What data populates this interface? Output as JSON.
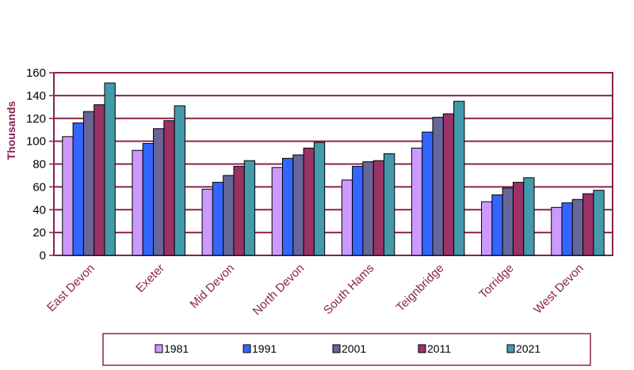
{
  "chart_data": {
    "type": "bar",
    "title": "",
    "xlabel": "",
    "ylabel": "Thousands",
    "ylim": [
      0,
      160
    ],
    "yticks": [
      0,
      20,
      40,
      60,
      80,
      100,
      120,
      140,
      160
    ],
    "grid": true,
    "legend_position": "bottom",
    "categories": [
      "East Devon",
      "Exeter",
      "Mid Devon",
      "North Devon",
      "South Hams",
      "Teignbridge",
      "Torridge",
      "West Devon"
    ],
    "series": [
      {
        "name": "1981",
        "color": "#cc99ff",
        "values": [
          104,
          92,
          58,
          77,
          66,
          94,
          47,
          42
        ]
      },
      {
        "name": "1991",
        "color": "#3366ff",
        "values": [
          116,
          98,
          64,
          85,
          78,
          108,
          53,
          46
        ]
      },
      {
        "name": "2001",
        "color": "#666699",
        "values": [
          126,
          111,
          70,
          88,
          82,
          121,
          59,
          49
        ]
      },
      {
        "name": "2011",
        "color": "#993366",
        "values": [
          132,
          118,
          78,
          94,
          83,
          124,
          64,
          54
        ]
      },
      {
        "name": "2021",
        "color": "#4499aa",
        "values": [
          151,
          131,
          83,
          99,
          89,
          135,
          68,
          57
        ]
      }
    ],
    "colors": {
      "axis": "#8b2252",
      "grid": "#8b2252"
    }
  }
}
